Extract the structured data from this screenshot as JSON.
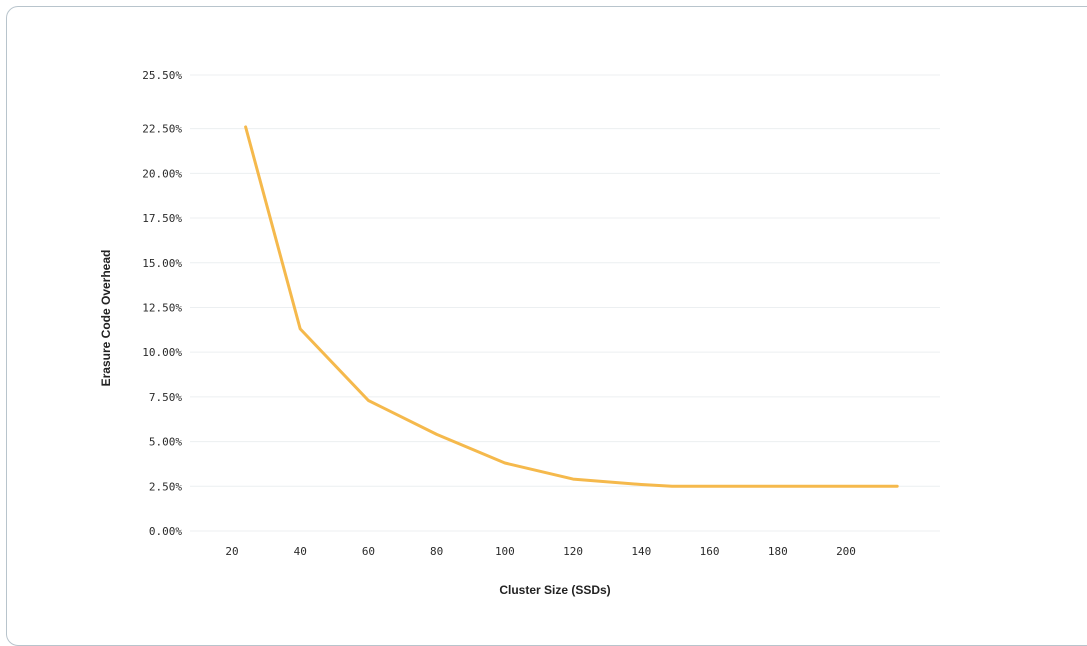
{
  "chart_data": {
    "type": "line",
    "title": "",
    "xlabel": "Cluster Size (SSDs)",
    "ylabel": "Erasure Code Overhead",
    "x_ticks": [
      20,
      40,
      60,
      80,
      100,
      120,
      140,
      160,
      180,
      200
    ],
    "x_tick_labels": [
      "20",
      "40",
      "60",
      "80",
      "100",
      "120",
      "140",
      "160",
      "180",
      "200"
    ],
    "y_ticks": [
      0,
      2.5,
      5,
      7.5,
      10,
      12.5,
      15,
      17.5,
      20,
      22.5,
      25.5
    ],
    "y_tick_labels": [
      "0.00%",
      "2.50%",
      "5.00%",
      "7.50%",
      "10.00%",
      "12.50%",
      "15.00%",
      "17.50%",
      "20.00%",
      "22.50%",
      "25.50%"
    ],
    "ylim": [
      0,
      25.5
    ],
    "grid": "horizontal",
    "series": [
      {
        "color": "#f5b94c",
        "x": [
          24,
          40,
          60,
          80,
          100,
          120,
          140,
          149,
          160,
          180,
          200,
          215
        ],
        "y": [
          22.6,
          11.3,
          7.3,
          5.4,
          3.8,
          2.9,
          2.6,
          2.5,
          2.5,
          2.5,
          2.5,
          2.5
        ]
      }
    ]
  }
}
